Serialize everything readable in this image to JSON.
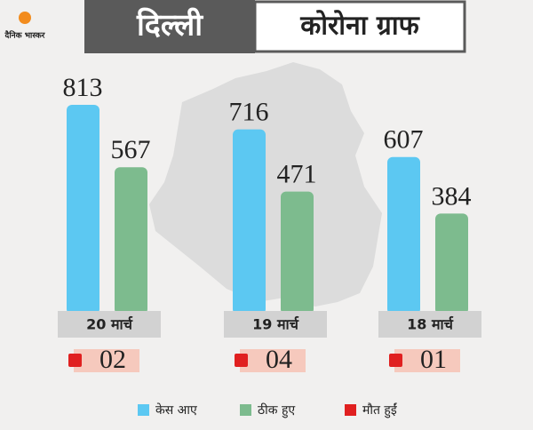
{
  "chart_data": {
    "type": "bar",
    "brand": "दैनिक भास्कर",
    "title": "दिल्ली",
    "subtitle": "कोरोना ग्राफ",
    "categories": [
      "20 मार्च",
      "19 मार्च",
      "18 मार्च"
    ],
    "series": [
      {
        "name": "केस आए",
        "color": "#5cc8f2",
        "values": [
          813,
          716,
          607
        ]
      },
      {
        "name": "ठीक हुए",
        "color": "#7dbb8e",
        "values": [
          567,
          471,
          384
        ]
      },
      {
        "name": "मौत हुईं",
        "color": "#e02020",
        "values": [
          2,
          4,
          1
        ],
        "value_labels": [
          "02",
          "04",
          "01"
        ]
      }
    ]
  }
}
